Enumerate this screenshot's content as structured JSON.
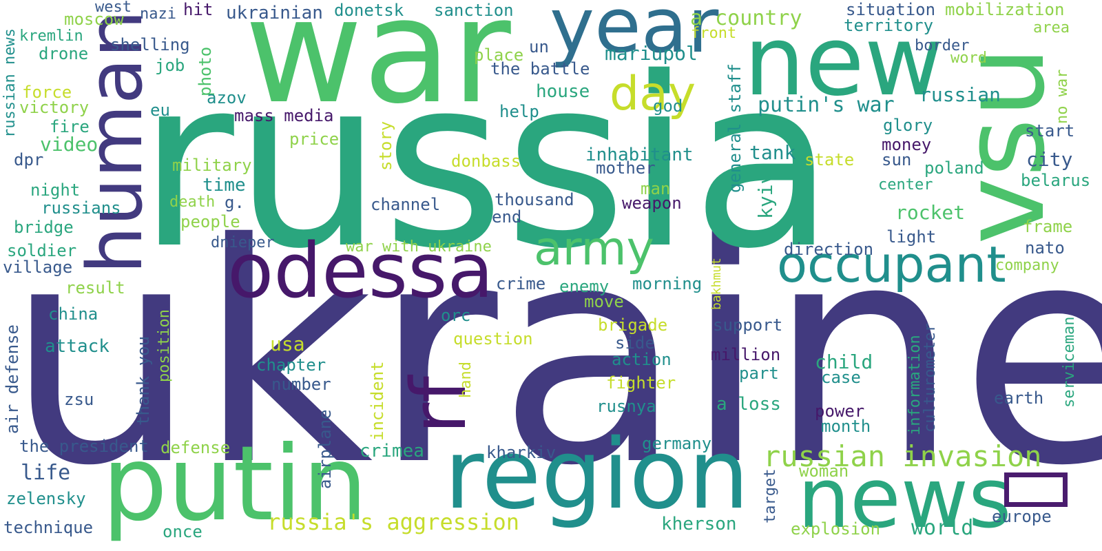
{
  "palette": {
    "c1": "#423a7f",
    "c2": "#2f6f8e",
    "c3": "#208f8c",
    "c4": "#2aa67e",
    "c5": "#4cc26b",
    "c6": "#8fd24a",
    "c7": "#c6dd2b",
    "c8": "#46186a",
    "c9": "#38598c"
  },
  "words": [
    {
      "text": "ukraine",
      "color": "c1"
    },
    {
      "text": "russia",
      "color": "c4"
    },
    {
      "text": "war",
      "color": "c5"
    },
    {
      "text": "new",
      "color": "c4"
    },
    {
      "text": "year",
      "color": "c2"
    },
    {
      "text": "vsu",
      "color": "c5"
    },
    {
      "text": "human",
      "color": "c1"
    },
    {
      "text": "odessa",
      "color": "c8"
    },
    {
      "text": "putin",
      "color": "c5"
    },
    {
      "text": "region",
      "color": "c3"
    },
    {
      "text": "news",
      "color": "c4"
    },
    {
      "text": "army",
      "color": "c5"
    },
    {
      "text": "occupant",
      "color": "c3"
    },
    {
      "text": "day",
      "color": "c7"
    },
    {
      "text": "rf",
      "color": "c8"
    },
    {
      "text": "russian invasion",
      "color": "c6"
    },
    {
      "text": "a country",
      "color": "c6"
    },
    {
      "text": "putin's war",
      "color": "c3"
    },
    {
      "text": "russia's aggression",
      "color": "c7"
    },
    {
      "text": "mariupol",
      "color": "c3"
    },
    {
      "text": "ukrainian",
      "color": "c9"
    },
    {
      "text": "donetsk",
      "color": "c3"
    },
    {
      "text": "sanction",
      "color": "c3"
    },
    {
      "text": "situation",
      "color": "c9"
    },
    {
      "text": "mobilization",
      "color": "c6"
    },
    {
      "text": "territory",
      "color": "c3"
    },
    {
      "text": "area",
      "color": "c6"
    },
    {
      "text": "front",
      "color": "c7"
    },
    {
      "text": "border",
      "color": "c9"
    },
    {
      "text": "word",
      "color": "c6"
    },
    {
      "text": "russian",
      "color": "c3"
    },
    {
      "text": "no war",
      "color": "c6"
    },
    {
      "text": "start",
      "color": "c9"
    },
    {
      "text": "glory",
      "color": "c3"
    },
    {
      "text": "money",
      "color": "c8"
    },
    {
      "text": "city",
      "color": "c9"
    },
    {
      "text": "sun",
      "color": "c9"
    },
    {
      "text": "poland",
      "color": "c4"
    },
    {
      "text": "belarus",
      "color": "c4"
    },
    {
      "text": "center",
      "color": "c4"
    },
    {
      "text": "state",
      "color": "c7"
    },
    {
      "text": "rocket",
      "color": "c5"
    },
    {
      "text": "frame",
      "color": "c6"
    },
    {
      "text": "light",
      "color": "c9"
    },
    {
      "text": "nato",
      "color": "c9"
    },
    {
      "text": "direction",
      "color": "c9"
    },
    {
      "text": "company",
      "color": "c6"
    },
    {
      "text": "west",
      "color": "c9"
    },
    {
      "text": "nazi",
      "color": "c9"
    },
    {
      "text": "hit",
      "color": "c8"
    },
    {
      "text": "moscow",
      "color": "c6"
    },
    {
      "text": "kremlin",
      "color": "c4"
    },
    {
      "text": "russian news",
      "color": "c3"
    },
    {
      "text": "drone",
      "color": "c4"
    },
    {
      "text": "shelling",
      "color": "c9"
    },
    {
      "text": "job",
      "color": "c4"
    },
    {
      "text": "photo",
      "color": "c5"
    },
    {
      "text": "place",
      "color": "c6"
    },
    {
      "text": "un",
      "color": "c9"
    },
    {
      "text": "the battle",
      "color": "c9"
    },
    {
      "text": "house",
      "color": "c4"
    },
    {
      "text": "general staff",
      "color": "c3"
    },
    {
      "text": "azov",
      "color": "c3"
    },
    {
      "text": "mass media",
      "color": "c8"
    },
    {
      "text": "help",
      "color": "c3"
    },
    {
      "text": "force",
      "color": "c7"
    },
    {
      "text": "victory",
      "color": "c6"
    },
    {
      "text": "eu",
      "color": "c3"
    },
    {
      "text": "fire",
      "color": "c4"
    },
    {
      "text": "video",
      "color": "c5"
    },
    {
      "text": "dpr",
      "color": "c9"
    },
    {
      "text": "price",
      "color": "c6"
    },
    {
      "text": "story",
      "color": "c7"
    },
    {
      "text": "god",
      "color": "c3"
    },
    {
      "text": "military",
      "color": "c6"
    },
    {
      "text": "donbass",
      "color": "c7"
    },
    {
      "text": "inhabitant",
      "color": "c3"
    },
    {
      "text": "mother",
      "color": "c9"
    },
    {
      "text": "tank",
      "color": "c3"
    },
    {
      "text": "kyiv",
      "color": "c4"
    },
    {
      "text": "time",
      "color": "c3"
    },
    {
      "text": "night",
      "color": "c4"
    },
    {
      "text": "russians",
      "color": "c3"
    },
    {
      "text": "g.",
      "color": "c9"
    },
    {
      "text": "death",
      "color": "c6"
    },
    {
      "text": "channel",
      "color": "c9"
    },
    {
      "text": "thousand",
      "color": "c9"
    },
    {
      "text": "weapon",
      "color": "c8"
    },
    {
      "text": "man",
      "color": "c6"
    },
    {
      "text": "bridge",
      "color": "c4"
    },
    {
      "text": "people",
      "color": "c6"
    },
    {
      "text": "end",
      "color": "c9"
    },
    {
      "text": "soldier",
      "color": "c4"
    },
    {
      "text": "dnieper",
      "color": "c9"
    },
    {
      "text": "village",
      "color": "c9"
    },
    {
      "text": "war with ukraine",
      "color": "c6"
    },
    {
      "text": "bakhmut",
      "color": "c7"
    },
    {
      "text": "result",
      "color": "c6"
    },
    {
      "text": "crime",
      "color": "c9"
    },
    {
      "text": "enemy",
      "color": "c4"
    },
    {
      "text": "morning",
      "color": "c3"
    },
    {
      "text": "move",
      "color": "c6"
    },
    {
      "text": "china",
      "color": "c3"
    },
    {
      "text": "orc",
      "color": "c3"
    },
    {
      "text": "brigade",
      "color": "c7"
    },
    {
      "text": "support",
      "color": "c9"
    },
    {
      "text": "air defense",
      "color": "c9"
    },
    {
      "text": "position",
      "color": "c6"
    },
    {
      "text": "attack",
      "color": "c3"
    },
    {
      "text": "usa",
      "color": "c7"
    },
    {
      "text": "question",
      "color": "c7"
    },
    {
      "text": "side",
      "color": "c9"
    },
    {
      "text": "information",
      "color": "c4"
    },
    {
      "text": "culturometer",
      "color": "c9"
    },
    {
      "text": "serviceman",
      "color": "c4"
    },
    {
      "text": "thank you",
      "color": "c9"
    },
    {
      "text": "chapter",
      "color": "c3"
    },
    {
      "text": "incident",
      "color": "c7"
    },
    {
      "text": "action",
      "color": "c3"
    },
    {
      "text": "million",
      "color": "c8"
    },
    {
      "text": "child",
      "color": "c4"
    },
    {
      "text": "number",
      "color": "c9"
    },
    {
      "text": "hand",
      "color": "c7"
    },
    {
      "text": "fighter",
      "color": "c7"
    },
    {
      "text": "part",
      "color": "c3"
    },
    {
      "text": "case",
      "color": "c3"
    },
    {
      "text": "zsu",
      "color": "c9"
    },
    {
      "text": "airplane",
      "color": "c9"
    },
    {
      "text": "rusnya",
      "color": "c3"
    },
    {
      "text": "a loss",
      "color": "c4"
    },
    {
      "text": "earth",
      "color": "c9"
    },
    {
      "text": "power",
      "color": "c8"
    },
    {
      "text": "month",
      "color": "c3"
    },
    {
      "text": "the president",
      "color": "c9"
    },
    {
      "text": "defense",
      "color": "c6"
    },
    {
      "text": "germany",
      "color": "c3"
    },
    {
      "text": "crimea",
      "color": "c4"
    },
    {
      "text": "kharkiv",
      "color": "c9"
    },
    {
      "text": "life",
      "color": "c9"
    },
    {
      "text": "target",
      "color": "c9"
    },
    {
      "text": "woman",
      "color": "c6"
    },
    {
      "text": "zelensky",
      "color": "c3"
    },
    {
      "text": "europe",
      "color": "c9"
    },
    {
      "text": "technique",
      "color": "c9"
    },
    {
      "text": "once",
      "color": "c4"
    },
    {
      "text": "kherson",
      "color": "c4"
    },
    {
      "text": "explosion",
      "color": "c6"
    },
    {
      "text": "world",
      "color": "c4"
    }
  ]
}
